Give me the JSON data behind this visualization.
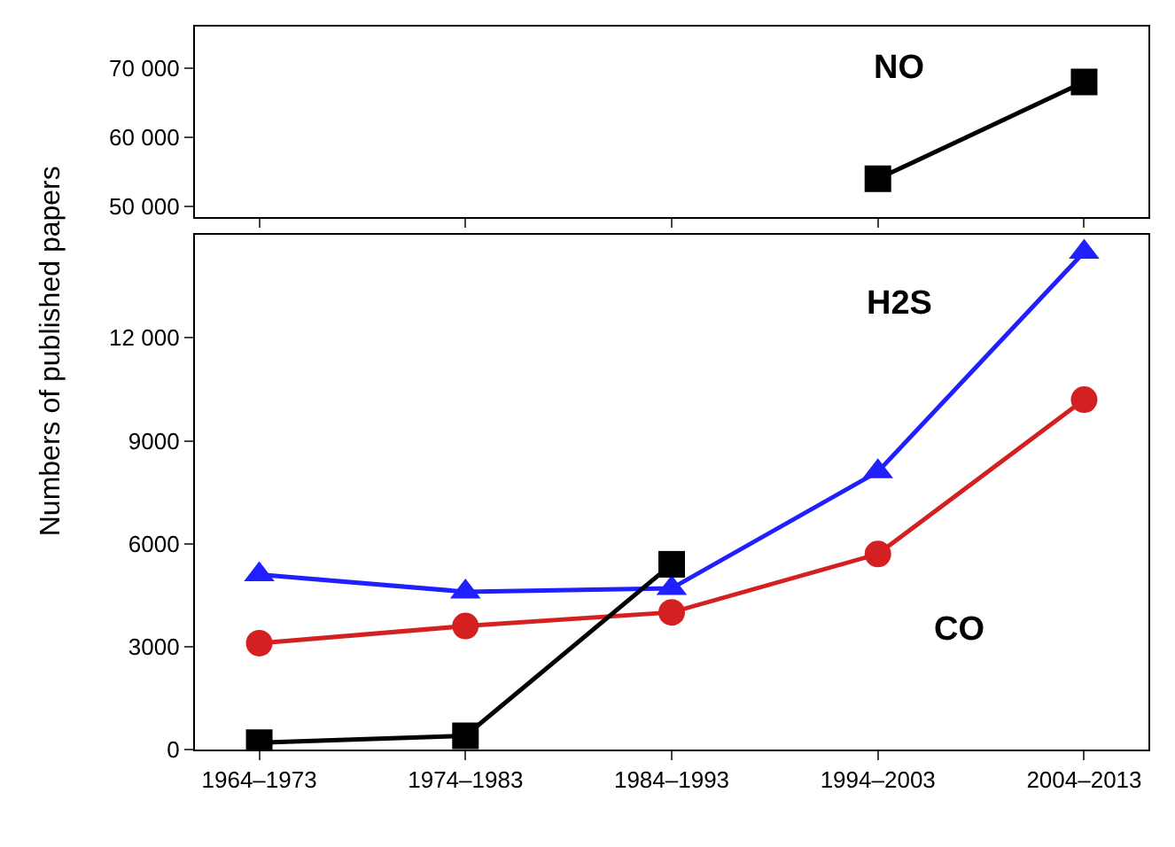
{
  "chart_data": [
    {
      "type": "line",
      "categories": [
        "1964–1973",
        "1974–1983",
        "1984–1993",
        "1994–2003",
        "2004–2013"
      ],
      "ylim": [
        48500,
        76000
      ],
      "yticks": [
        {
          "value": 50000,
          "label": "50 000"
        },
        {
          "value": 60000,
          "label": "60 000"
        },
        {
          "value": 70000,
          "label": "70 000"
        }
      ],
      "tick_labels": "y",
      "legend": false,
      "series": [
        {
          "name": "NO",
          "color": "#000000",
          "marker": "square",
          "values": [
            null,
            null,
            null,
            54000,
            68000
          ]
        }
      ]
    },
    {
      "type": "line",
      "categories": [
        "1964–1973",
        "1974–1983",
        "1984–1993",
        "1994–2003",
        "2004–2013"
      ],
      "ylabel": "Numbers of published papers",
      "ylim": [
        0,
        15000
      ],
      "yticks": [
        0,
        3000,
        6000,
        9000,
        {
          "value": 12000,
          "label": "12 000"
        }
      ],
      "legend": false,
      "series": [
        {
          "name": "H2S",
          "color": "#2020ff",
          "marker": "triangle",
          "values": [
            5100,
            4600,
            4700,
            8100,
            14500
          ]
        },
        {
          "name": "CO",
          "color": "#d42020",
          "marker": "circle",
          "values": [
            3100,
            3600,
            4000,
            5700,
            10200
          ]
        },
        {
          "color": "#000000",
          "marker": "square",
          "values": [
            200,
            400,
            5400,
            null,
            null
          ]
        }
      ]
    }
  ]
}
